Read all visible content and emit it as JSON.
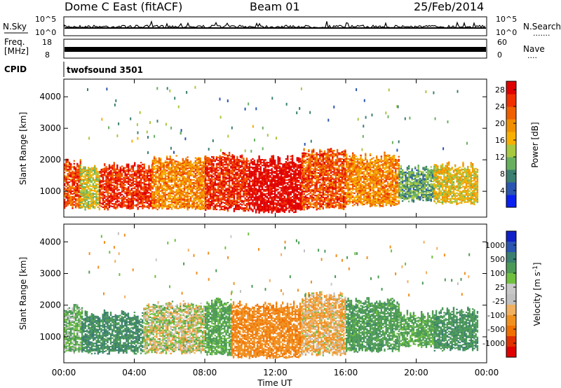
{
  "header": {
    "title": "Dome C East (fitACF)",
    "beam": "Beam 01",
    "date": "25/Feb/2014"
  },
  "noise_panel": {
    "left_label": "N.Sky",
    "right_label": "N.Search",
    "right_dots": ".......",
    "left_ticks": [
      "10^5",
      "10^0"
    ],
    "right_ticks": [
      "10^5",
      "10^0"
    ]
  },
  "freq_panel": {
    "left_label_1": "Freq.",
    "left_label_2": "[MHz]",
    "right_label": "Nave",
    "right_dots": "....",
    "left_ticks": [
      "18",
      "8"
    ],
    "right_ticks": [
      "60",
      "0"
    ]
  },
  "cpid": {
    "label": "CPID",
    "value": "twofsound 3501"
  },
  "x_axis": {
    "label": "Time UT",
    "ticks": [
      "00:00",
      "04:00",
      "08:00",
      "12:00",
      "16:00",
      "20:00",
      "00:00"
    ],
    "range_hours": [
      0,
      24
    ]
  },
  "colors": {
    "power_scale": [
      "#0a20f0",
      "#2a55b0",
      "#3b7f70",
      "#68b060",
      "#a8c840",
      "#f8b000",
      "#f09000",
      "#f06000",
      "#f03000",
      "#e00000"
    ],
    "velocity_scale": [
      "#1020c8",
      "#2a55b0",
      "#3b7f70",
      "#4c9a56",
      "#70c040",
      "#c8c8c8",
      "#c0c0c0",
      "#f0b060",
      "#f09020",
      "#f07000",
      "#e03000",
      "#e00000"
    ]
  },
  "chart_data": [
    {
      "type": "heatmap",
      "name": "power",
      "ylabel": "Slant Range [km]",
      "xlabel": "Time UT",
      "ylim": [
        180,
        4560
      ],
      "xlim": [
        0,
        24
      ],
      "yticks": [
        1000,
        2000,
        3000,
        4000
      ],
      "colorbar_label": "Power [dB]",
      "colorbar_ticks": [
        4,
        8,
        12,
        16,
        20,
        24,
        28
      ],
      "colorbar_range": [
        0,
        30
      ],
      "echo_regions": [
        {
          "t_start": 0.0,
          "t_end": 0.9,
          "r_low": 500,
          "r_high": 1900,
          "level": 24
        },
        {
          "t_start": 0.9,
          "t_end": 2.0,
          "r_low": 450,
          "r_high": 1750,
          "level": 14
        },
        {
          "t_start": 2.0,
          "t_end": 5.0,
          "r_low": 450,
          "r_high": 1800,
          "level": 26
        },
        {
          "t_start": 5.0,
          "t_end": 8.0,
          "r_low": 450,
          "r_high": 2000,
          "level": 20
        },
        {
          "t_start": 8.0,
          "t_end": 10.5,
          "r_low": 400,
          "r_high": 2100,
          "level": 26
        },
        {
          "t_start": 10.5,
          "t_end": 13.5,
          "r_low": 350,
          "r_high": 2000,
          "level": 30
        },
        {
          "t_start": 13.5,
          "t_end": 16.0,
          "r_low": 450,
          "r_high": 2300,
          "level": 24
        },
        {
          "t_start": 16.0,
          "t_end": 19.0,
          "r_low": 550,
          "r_high": 2100,
          "level": 20
        },
        {
          "t_start": 19.0,
          "t_end": 21.0,
          "r_low": 700,
          "r_high": 1700,
          "level": 10
        },
        {
          "t_start": 21.0,
          "t_end": 23.5,
          "r_low": 600,
          "r_high": 1800,
          "level": 16
        }
      ]
    },
    {
      "type": "heatmap",
      "name": "velocity",
      "ylabel": "Slant Range [km]",
      "xlabel": "Time UT",
      "ylim": [
        180,
        4560
      ],
      "xlim": [
        0,
        24
      ],
      "yticks": [
        1000,
        2000,
        3000,
        4000
      ],
      "colorbar_label": "Velocity [m s^-1]",
      "colorbar_ticks": [
        1000,
        500,
        100,
        25,
        -25,
        -100,
        -500,
        -1000
      ],
      "echo_regions": [
        {
          "t_start": 0.0,
          "t_end": 1.0,
          "r_low": 500,
          "r_high": 1900,
          "velocity": 100
        },
        {
          "t_start": 1.0,
          "t_end": 4.5,
          "r_low": 500,
          "r_high": 1700,
          "velocity": 300
        },
        {
          "t_start": 4.5,
          "t_end": 8.0,
          "r_low": 500,
          "r_high": 2000,
          "velocity": 0
        },
        {
          "t_start": 8.0,
          "t_end": 9.5,
          "r_low": 450,
          "r_high": 2100,
          "velocity": 150
        },
        {
          "t_start": 9.5,
          "t_end": 13.5,
          "r_low": 350,
          "r_high": 2000,
          "velocity": -250
        },
        {
          "t_start": 13.5,
          "t_end": 16.0,
          "r_low": 450,
          "r_high": 2300,
          "velocity": -80
        },
        {
          "t_start": 16.0,
          "t_end": 19.0,
          "r_low": 550,
          "r_high": 2100,
          "velocity": 200
        },
        {
          "t_start": 19.0,
          "t_end": 21.0,
          "r_low": 700,
          "r_high": 1700,
          "velocity": 150
        },
        {
          "t_start": 21.0,
          "t_end": 23.5,
          "r_low": 600,
          "r_high": 1800,
          "velocity": 250
        }
      ]
    }
  ]
}
